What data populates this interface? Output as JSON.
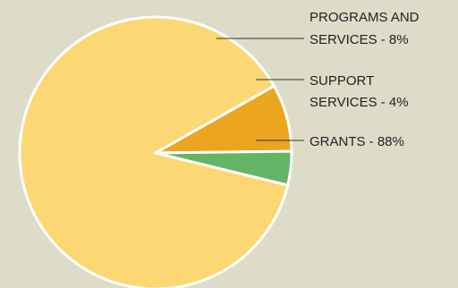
{
  "chart_data": {
    "type": "pie",
    "slices": [
      {
        "label_lines": [
          "GRANTS - 88%"
        ],
        "value": 88,
        "color": "#fdd774"
      },
      {
        "label_lines": [
          "PROGRAMS AND",
          "SERVICES - 8%"
        ],
        "value": 8,
        "color": "#eba51f"
      },
      {
        "label_lines": [
          "SUPPORT",
          "SERVICES - 4%"
        ],
        "value": 4,
        "color": "#63b565"
      }
    ],
    "slice_border_color": "#ffffff",
    "leader_line_color": "#333333",
    "legend": "callout labels to the right"
  }
}
